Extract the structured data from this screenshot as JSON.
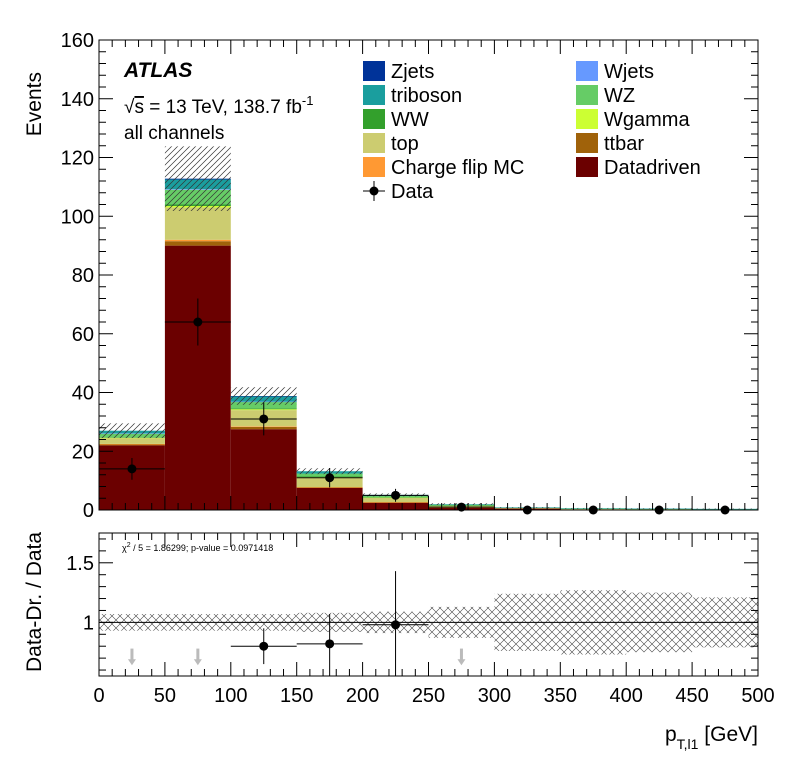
{
  "chart_data": {
    "type": "bar",
    "subtype": "stacked-histogram-with-ratio-panel",
    "experiment": "ATLAS",
    "energy_prefix": "s",
    "energy_text": " = 13 TeV, 138.7 fb",
    "lumi_exponent": "-1",
    "channel_text": "all channels",
    "x_label_main": "p",
    "x_label_sub": "T,l1",
    "x_label_unit": " [GeV]",
    "xlim": [
      0,
      500
    ],
    "bin_edges": [
      0,
      50,
      100,
      150,
      200,
      250,
      300,
      350,
      400,
      450,
      500
    ],
    "x_ticks": [
      "0",
      "50",
      "100",
      "150",
      "200",
      "250",
      "300",
      "350",
      "400",
      "450",
      "500"
    ],
    "upper": {
      "ylabel": "Events",
      "ylim": [
        0,
        160
      ],
      "y_ticks": [
        "0",
        "20",
        "40",
        "60",
        "80",
        "100",
        "120",
        "140",
        "160"
      ],
      "series": [
        {
          "name": "Datadriven",
          "color": "#6b0000",
          "values": [
            22.0,
            90.0,
            27.5,
            7.5,
            2.5,
            0.8,
            0.5,
            0.2,
            0.2,
            0.1
          ]
        },
        {
          "name": "ttbar",
          "color": "#a0620a",
          "values": [
            0.3,
            1.5,
            0.8,
            0.2,
            0.1,
            0.05,
            0.0,
            0.0,
            0.0,
            0.0
          ]
        },
        {
          "name": "Charge flip MC",
          "color": "#ff9933",
          "values": [
            0.2,
            0.5,
            0.2,
            0.1,
            0.1,
            0.05,
            0.0,
            0.0,
            0.0,
            0.0
          ]
        },
        {
          "name": "top",
          "color": "#cccc70",
          "values": [
            2.0,
            11.0,
            5.5,
            3.3,
            1.5,
            0.5,
            0.2,
            0.2,
            0.1,
            0.1
          ]
        },
        {
          "name": "Wgamma",
          "color": "#ccff33",
          "values": [
            0.1,
            0.5,
            0.3,
            0.1,
            0.05,
            0.0,
            0.0,
            0.0,
            0.0,
            0.0
          ]
        },
        {
          "name": "WW",
          "color": "#33a02c",
          "values": [
            0.2,
            0.5,
            0.3,
            0.2,
            0.1,
            0.1,
            0.0,
            0.0,
            0.0,
            0.0
          ]
        },
        {
          "name": "WZ",
          "color": "#66cc66",
          "values": [
            1.2,
            5.0,
            2.2,
            1.0,
            0.4,
            0.3,
            0.1,
            0.1,
            0.1,
            0.1
          ]
        },
        {
          "name": "Wjets",
          "color": "#6699ff",
          "values": [
            0.1,
            0.2,
            0.1,
            0.0,
            0.0,
            0.0,
            0.0,
            0.0,
            0.0,
            0.0
          ]
        },
        {
          "name": "triboson",
          "color": "#1a9e9e",
          "values": [
            0.9,
            3.3,
            1.8,
            0.8,
            0.4,
            0.2,
            0.1,
            0.1,
            0.1,
            0.1
          ]
        },
        {
          "name": "Zjets",
          "color": "#003399",
          "values": [
            0.0,
            0.3,
            0.1,
            0.0,
            0.0,
            0.0,
            0.0,
            0.0,
            0.0,
            0.0
          ]
        }
      ],
      "band_half_height": [
        2.5,
        11.0,
        3.0,
        1.0,
        0.5,
        0.3,
        0.1,
        0.1,
        0.1,
        0.1
      ],
      "data": {
        "name": "Data",
        "values": [
          14,
          64,
          31,
          11,
          5,
          1,
          0,
          0,
          0,
          0
        ],
        "errors": [
          3.7,
          8.0,
          5.6,
          3.3,
          2.2,
          1.0,
          0,
          0,
          0,
          0
        ]
      },
      "legend": [
        {
          "name": "Zjets",
          "color": "#003399",
          "kind": "box"
        },
        {
          "name": "Wjets",
          "color": "#6699ff",
          "kind": "box"
        },
        {
          "name": "triboson",
          "color": "#1a9e9e",
          "kind": "box"
        },
        {
          "name": "WZ",
          "color": "#66cc66",
          "kind": "box"
        },
        {
          "name": "WW",
          "color": "#33a02c",
          "kind": "box"
        },
        {
          "name": "Wgamma",
          "color": "#ccff33",
          "kind": "box"
        },
        {
          "name": "top",
          "color": "#cccc70",
          "kind": "box"
        },
        {
          "name": "ttbar",
          "color": "#a0620a",
          "kind": "box"
        },
        {
          "name": "Charge flip MC",
          "color": "#ff9933",
          "kind": "box"
        },
        {
          "name": "Datadriven",
          "color": "#6b0000",
          "kind": "box"
        },
        {
          "name": "Data",
          "color": "#000000",
          "kind": "marker"
        }
      ]
    },
    "lower": {
      "ylabel": "Data-Dr. / Data",
      "ylim": [
        0.55,
        1.75
      ],
      "y_ticks": [
        "1",
        "1.5"
      ],
      "reference_line": 1,
      "chi2_prefix": "χ",
      "chi2_text": " / 5 = 1.86299; p-value = 0.0971418",
      "chi2_exponent": "2",
      "band": [
        [
          0.93,
          1.07
        ],
        [
          0.93,
          1.07
        ],
        [
          0.93,
          1.07
        ],
        [
          0.92,
          1.08
        ],
        [
          0.91,
          1.09
        ],
        [
          0.87,
          1.13
        ],
        [
          0.76,
          1.24
        ],
        [
          0.73,
          1.27
        ],
        [
          0.75,
          1.25
        ],
        [
          0.79,
          1.21
        ]
      ],
      "points": [
        {
          "bin": 2,
          "value": 0.8,
          "err_low": 0.15,
          "err_high": 0.15
        },
        {
          "bin": 3,
          "value": 0.82,
          "err_low": 0.28,
          "err_high": 0.25
        },
        {
          "bin": 4,
          "value": 0.98,
          "err_low": 0.45,
          "err_high": 0.45
        }
      ],
      "offscale_arrows_bins": [
        0,
        1,
        5
      ]
    }
  }
}
